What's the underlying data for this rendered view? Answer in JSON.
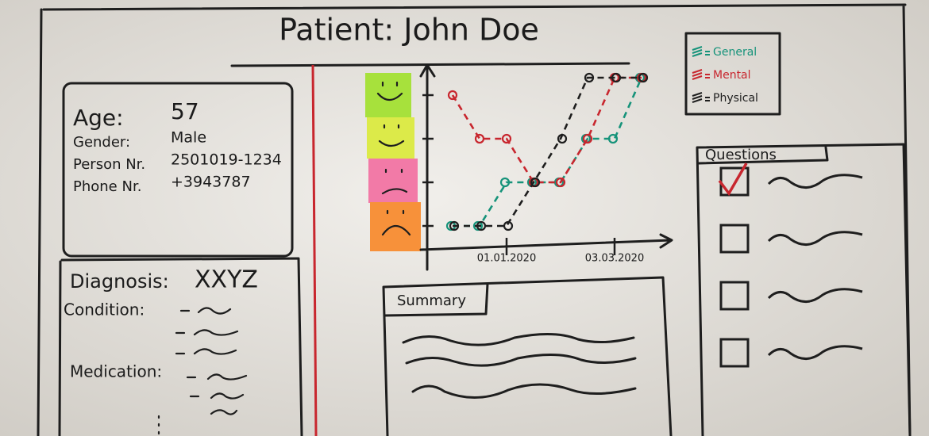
{
  "header": {
    "title": "Patient: John Doe"
  },
  "patient": {
    "fields": [
      {
        "label": "Age:",
        "value": "57"
      },
      {
        "label": "Gender:",
        "value": "Male"
      },
      {
        "label": "Person Nr.",
        "value": "2501019-1234"
      },
      {
        "label": "Phone Nr.",
        "value": "+3943787"
      }
    ]
  },
  "diagnosis": {
    "label": "Diagnosis:",
    "value": "XXYZ",
    "condition_label": "Condition:",
    "medication_label": "Medication:"
  },
  "summary": {
    "title": "Summary"
  },
  "questions": {
    "title": "Questions",
    "items": [
      {
        "checked": true
      },
      {
        "checked": false
      },
      {
        "checked": false
      },
      {
        "checked": false
      }
    ]
  },
  "chart_data": {
    "type": "line",
    "categories": [
      null,
      null,
      "01.01.2020",
      null,
      null,
      null,
      "03.03.2020",
      null
    ],
    "series": [
      {
        "name": "General",
        "color": "#16937a",
        "values": [
          1,
          1,
          2,
          2,
          2,
          3,
          3,
          4.4
        ]
      },
      {
        "name": "Mental",
        "color": "#c8262e",
        "values": [
          4,
          3,
          3,
          2,
          2,
          3,
          4.4,
          4.4
        ]
      },
      {
        "name": "Physical",
        "color": "#1e1e1e",
        "values": [
          1,
          1,
          1,
          2,
          3,
          4.4,
          4.4,
          4.4
        ]
      }
    ],
    "ylim": [
      0.5,
      4.8
    ],
    "yticks": [
      1,
      2,
      3,
      4
    ]
  }
}
